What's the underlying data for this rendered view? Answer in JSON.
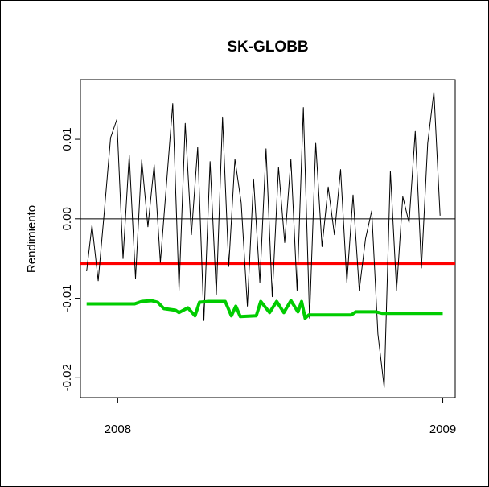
{
  "chart_data": {
    "type": "line",
    "title": "SK-GLOBB",
    "xlabel": "",
    "ylabel": "Rendimiento",
    "x_ticks": [
      "2008",
      "2009"
    ],
    "y_ticks": [
      "-0.02",
      "-0.01",
      "0.00",
      "0.01"
    ],
    "xlim": [
      "2007-11-20",
      "2009-01-15"
    ],
    "ylim": [
      -0.0225,
      0.0175
    ],
    "grid": false,
    "legend": "none",
    "hlines": [
      {
        "y": 0.0,
        "color": "#000000",
        "role": "zero line"
      },
      {
        "y": -0.0056,
        "color": "#ff0000",
        "role": "red horizontal line"
      }
    ],
    "series": [
      {
        "color": "#000000",
        "x": [
          "2007-11-27",
          "2007-12-03",
          "2007-12-10",
          "2007-12-17",
          "2007-12-24",
          "2007-12-31",
          "2008-01-07",
          "2008-01-14",
          "2008-01-21",
          "2008-01-28",
          "2008-02-04",
          "2008-02-11",
          "2008-02-18",
          "2008-02-25",
          "2008-03-03",
          "2008-03-10",
          "2008-03-17",
          "2008-03-24",
          "2008-03-31",
          "2008-04-07",
          "2008-04-14",
          "2008-04-21",
          "2008-04-28",
          "2008-05-05",
          "2008-05-12",
          "2008-05-19",
          "2008-05-26",
          "2008-06-02",
          "2008-06-09",
          "2008-06-16",
          "2008-06-23",
          "2008-06-30",
          "2008-07-07",
          "2008-07-14",
          "2008-07-21",
          "2008-07-28",
          "2008-08-04",
          "2008-08-11",
          "2008-08-18",
          "2008-08-25",
          "2008-09-01",
          "2008-09-08",
          "2008-09-15",
          "2008-09-22",
          "2008-09-29",
          "2008-10-06",
          "2008-10-13",
          "2008-10-20",
          "2008-10-27",
          "2008-11-03",
          "2008-11-10",
          "2008-11-17",
          "2008-11-24",
          "2008-12-01",
          "2008-12-08",
          "2008-12-15",
          "2008-12-22",
          "2008-12-29"
        ],
        "values": [
          -0.0066,
          -0.0008,
          -0.0078,
          0.001,
          0.0102,
          0.0125,
          -0.005,
          0.008,
          -0.0075,
          0.0074,
          -0.001,
          0.0068,
          -0.0055,
          0.0045,
          0.0145,
          -0.009,
          0.012,
          -0.002,
          0.009,
          -0.0128,
          0.0072,
          -0.0095,
          0.0128,
          -0.006,
          0.0075,
          0.002,
          -0.011,
          0.005,
          -0.008,
          0.0088,
          -0.0098,
          0.0065,
          -0.003,
          0.0075,
          -0.009,
          0.014,
          -0.0125,
          0.0095,
          -0.0035,
          0.004,
          -0.002,
          0.0062,
          -0.008,
          0.003,
          -0.009,
          -0.0025,
          0.001,
          -0.0145,
          -0.0212,
          0.006,
          -0.009,
          0.0028,
          -0.0005,
          0.011,
          -0.0062,
          0.0095,
          0.016,
          0.0004
        ]
      },
      {
        "color": "#00cc00",
        "x": [
          "2007-11-27",
          "2008-01-20",
          "2008-01-28",
          "2008-02-08",
          "2008-02-15",
          "2008-02-22",
          "2008-03-06",
          "2008-03-10",
          "2008-03-20",
          "2008-03-28",
          "2008-04-02",
          "2008-04-12",
          "2008-05-01",
          "2008-05-08",
          "2008-05-13",
          "2008-05-18",
          "2008-06-05",
          "2008-06-10",
          "2008-06-20",
          "2008-06-28",
          "2008-07-06",
          "2008-07-14",
          "2008-07-22",
          "2008-07-26",
          "2008-07-30",
          "2008-08-03",
          "2008-09-20",
          "2008-09-25",
          "2008-10-18",
          "2008-10-25",
          "2009-01-01"
        ],
        "values": [
          -0.0107,
          -0.0107,
          -0.0104,
          -0.0103,
          -0.0105,
          -0.0113,
          -0.0115,
          -0.0118,
          -0.0112,
          -0.0122,
          -0.0105,
          -0.0104,
          -0.0104,
          -0.0122,
          -0.011,
          -0.0123,
          -0.0122,
          -0.0104,
          -0.0118,
          -0.0104,
          -0.0118,
          -0.0103,
          -0.0117,
          -0.0104,
          -0.0125,
          -0.0121,
          -0.0121,
          -0.0117,
          -0.0117,
          -0.0119,
          -0.0119
        ]
      }
    ]
  }
}
